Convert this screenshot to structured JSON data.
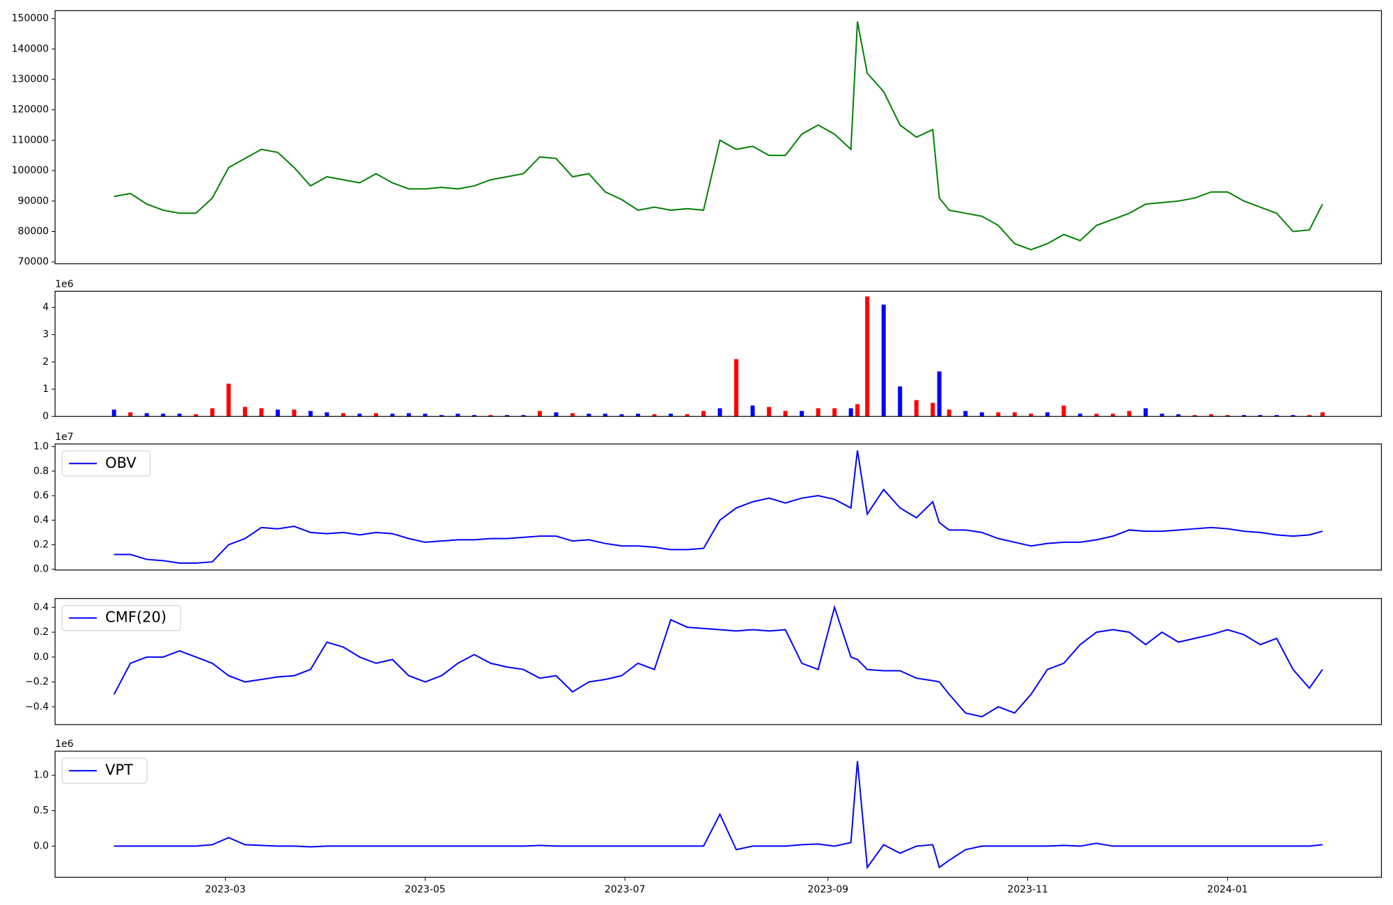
{
  "chart_data": [
    {
      "type": "line",
      "color": "green",
      "x": [
        25,
        30,
        35,
        40,
        45,
        50,
        55,
        60,
        65,
        70,
        75,
        80,
        85,
        90,
        95,
        100,
        105,
        110,
        115,
        120,
        125,
        130,
        135,
        140,
        145,
        150,
        155,
        160,
        165,
        170,
        175,
        180,
        185,
        190,
        195,
        200,
        205,
        210,
        215,
        220,
        225,
        230,
        235,
        240,
        245,
        250,
        252,
        255,
        260,
        265,
        270,
        275,
        277,
        280,
        285,
        290,
        295,
        300,
        305,
        310,
        315,
        320,
        325,
        330,
        335,
        340,
        345,
        350,
        355,
        360,
        365,
        370,
        375,
        380,
        385,
        390,
        394
      ],
      "values": [
        91500,
        92500,
        89000,
        87000,
        86000,
        86000,
        91000,
        101000,
        104000,
        107000,
        106000,
        101000,
        95000,
        98000,
        97000,
        96000,
        99000,
        96000,
        94000,
        94000,
        94500,
        94000,
        95000,
        97000,
        98000,
        99000,
        104500,
        104000,
        98000,
        99000,
        93000,
        90500,
        87000,
        88000,
        87000,
        87500,
        87000,
        110000,
        107000,
        108000,
        105000,
        105000,
        112000,
        115000,
        112000,
        107000,
        149000,
        132000,
        126000,
        115000,
        111000,
        113500,
        91000,
        87000,
        86000,
        85000,
        82000,
        76000,
        74000,
        76000,
        79000,
        77000,
        82000,
        84000,
        86000,
        89000,
        89500,
        90000,
        91000,
        93000,
        93000,
        90000,
        88000,
        86000,
        80000,
        80500,
        89000
      ],
      "xlim": [
        7,
        412
      ],
      "ylim": [
        69400,
        152600
      ],
      "yticks": [
        70000,
        80000,
        90000,
        100000,
        110000,
        120000,
        130000,
        140000,
        150000
      ]
    },
    {
      "type": "bar",
      "y_offset_label": "1e6",
      "x": [
        25,
        30,
        35,
        40,
        45,
        50,
        55,
        60,
        65,
        70,
        75,
        80,
        85,
        90,
        95,
        100,
        105,
        110,
        115,
        120,
        125,
        130,
        135,
        140,
        145,
        150,
        155,
        160,
        165,
        170,
        175,
        180,
        185,
        190,
        195,
        200,
        205,
        210,
        215,
        220,
        225,
        230,
        235,
        240,
        245,
        250,
        252,
        255,
        260,
        265,
        270,
        275,
        277,
        280,
        285,
        290,
        295,
        300,
        305,
        310,
        315,
        320,
        325,
        330,
        335,
        340,
        345,
        350,
        355,
        360,
        365,
        370,
        375,
        380,
        385,
        390,
        394
      ],
      "values": [
        0.25,
        0.15,
        0.12,
        0.1,
        0.1,
        0.08,
        0.3,
        1.2,
        0.35,
        0.3,
        0.25,
        0.25,
        0.2,
        0.15,
        0.12,
        0.1,
        0.12,
        0.1,
        0.12,
        0.1,
        0.05,
        0.1,
        0.05,
        0.05,
        0.05,
        0.05,
        0.2,
        0.15,
        0.12,
        0.1,
        0.1,
        0.08,
        0.1,
        0.08,
        0.1,
        0.08,
        0.2,
        0.3,
        2.1,
        0.4,
        0.35,
        0.2,
        0.2,
        0.3,
        0.3,
        0.3,
        0.45,
        4.4,
        4.1,
        1.1,
        0.6,
        0.5,
        1.65,
        0.25,
        0.2,
        0.15,
        0.15,
        0.15,
        0.1,
        0.15,
        0.4,
        0.1,
        0.1,
        0.1,
        0.2,
        0.3,
        0.1,
        0.08,
        0.05,
        0.08,
        0.05,
        0.05,
        0.05,
        0.05,
        0.05,
        0.05,
        0.15
      ],
      "colors": [
        "blue",
        "red",
        "blue",
        "blue",
        "blue",
        "red",
        "red",
        "red",
        "red",
        "red",
        "blue",
        "red",
        "blue",
        "blue",
        "red",
        "blue",
        "red",
        "blue",
        "blue",
        "blue",
        "blue",
        "blue",
        "blue",
        "red",
        "blue",
        "blue",
        "red",
        "blue",
        "red",
        "blue",
        "blue",
        "blue",
        "blue",
        "red",
        "blue",
        "red",
        "red",
        "blue",
        "red",
        "blue",
        "red",
        "red",
        "blue",
        "red",
        "red",
        "blue",
        "red",
        "red",
        "blue",
        "blue",
        "red",
        "red",
        "blue",
        "red",
        "blue",
        "blue",
        "red",
        "red",
        "red",
        "blue",
        "red",
        "blue",
        "red",
        "red",
        "red",
        "blue",
        "blue",
        "blue",
        "red",
        "red",
        "red",
        "blue",
        "blue",
        "blue",
        "blue",
        "red",
        "red"
      ],
      "xlim": [
        7,
        412
      ],
      "ylim": [
        0,
        4.59
      ],
      "yticks": [
        0,
        1,
        2,
        3,
        4
      ]
    },
    {
      "type": "line",
      "y_offset_label": "1e7",
      "legend": "upper left",
      "x": [
        25,
        30,
        35,
        40,
        45,
        50,
        55,
        60,
        65,
        70,
        75,
        80,
        85,
        90,
        95,
        100,
        105,
        110,
        115,
        120,
        125,
        130,
        135,
        140,
        145,
        150,
        155,
        160,
        165,
        170,
        175,
        180,
        185,
        190,
        195,
        200,
        205,
        210,
        215,
        220,
        225,
        230,
        235,
        240,
        245,
        250,
        252,
        255,
        260,
        265,
        270,
        275,
        277,
        280,
        285,
        290,
        295,
        300,
        305,
        310,
        315,
        320,
        325,
        330,
        335,
        340,
        345,
        350,
        355,
        360,
        365,
        370,
        375,
        380,
        385,
        390,
        394
      ],
      "series": [
        {
          "name": "OBV",
          "color": "blue",
          "values": [
            0.12,
            0.12,
            0.08,
            0.07,
            0.05,
            0.05,
            0.06,
            0.2,
            0.25,
            0.34,
            0.33,
            0.35,
            0.3,
            0.29,
            0.3,
            0.28,
            0.3,
            0.29,
            0.25,
            0.22,
            0.23,
            0.24,
            0.24,
            0.25,
            0.25,
            0.26,
            0.27,
            0.27,
            0.23,
            0.24,
            0.21,
            0.19,
            0.19,
            0.18,
            0.16,
            0.16,
            0.17,
            0.4,
            0.5,
            0.55,
            0.58,
            0.54,
            0.58,
            0.6,
            0.57,
            0.5,
            0.97,
            0.45,
            0.65,
            0.5,
            0.42,
            0.55,
            0.38,
            0.32,
            0.32,
            0.3,
            0.25,
            0.22,
            0.19,
            0.21,
            0.22,
            0.22,
            0.24,
            0.27,
            0.32,
            0.31,
            0.31,
            0.32,
            0.33,
            0.34,
            0.33,
            0.31,
            0.3,
            0.28,
            0.27,
            0.28,
            0.31
          ]
        }
      ],
      "xlim": [
        7,
        412
      ],
      "ylim": [
        -0.007,
        1.022
      ],
      "yticks": [
        {
          "value": 0,
          "label": "0.0"
        },
        0.2,
        0.4,
        0.6,
        0.8,
        {
          "value": 1,
          "label": "1.0"
        }
      ]
    },
    {
      "type": "line",
      "legend": "upper left",
      "x": [
        25,
        30,
        35,
        40,
        45,
        50,
        55,
        60,
        65,
        70,
        75,
        80,
        85,
        90,
        95,
        100,
        105,
        110,
        115,
        120,
        125,
        130,
        135,
        140,
        145,
        150,
        155,
        160,
        165,
        170,
        175,
        180,
        185,
        190,
        195,
        200,
        205,
        210,
        215,
        220,
        225,
        230,
        235,
        240,
        245,
        250,
        252,
        255,
        260,
        265,
        270,
        275,
        277,
        280,
        285,
        290,
        295,
        300,
        305,
        310,
        315,
        320,
        325,
        330,
        335,
        340,
        345,
        350,
        355,
        360,
        365,
        370,
        375,
        380,
        385,
        390,
        394
      ],
      "series": [
        {
          "name": "CMF(20)",
          "color": "blue",
          "values": [
            -0.3,
            -0.05,
            0,
            0,
            0.05,
            0,
            -0.05,
            -0.15,
            -0.2,
            -0.18,
            -0.16,
            -0.15,
            -0.1,
            0.12,
            0.08,
            0,
            -0.05,
            -0.02,
            -0.15,
            -0.2,
            -0.15,
            -0.05,
            0.02,
            -0.05,
            -0.08,
            -0.1,
            -0.17,
            -0.15,
            -0.28,
            -0.2,
            -0.18,
            -0.15,
            -0.05,
            -0.1,
            0.3,
            0.24,
            0.23,
            0.22,
            0.21,
            0.22,
            0.21,
            0.22,
            -0.05,
            -0.1,
            0.4,
            0,
            -0.02,
            -0.1,
            -0.11,
            -0.11,
            -0.17,
            -0.19,
            -0.2,
            -0.3,
            -0.45,
            -0.48,
            -0.4,
            -0.45,
            -0.3,
            -0.1,
            -0.05,
            0.1,
            0.2,
            0.22,
            0.2,
            0.1,
            0.2,
            0.12,
            0.15,
            0.18,
            0.22,
            0.18,
            0.1,
            0.15,
            -0.1,
            -0.25,
            -0.1
          ]
        }
      ],
      "xlim": [
        7,
        412
      ],
      "ylim": [
        -0.543,
        0.471
      ],
      "yticks": [
        {
          "value": -0.4,
          "label": "−0.4"
        },
        {
          "value": -0.2,
          "label": "−0.2"
        },
        {
          "value": 0,
          "label": "0.0"
        },
        0.2,
        0.4
      ]
    },
    {
      "type": "line",
      "y_offset_label": "1e6",
      "legend": "upper left",
      "x": [
        25,
        30,
        35,
        40,
        45,
        50,
        55,
        60,
        65,
        70,
        75,
        80,
        85,
        90,
        95,
        100,
        105,
        110,
        115,
        120,
        125,
        130,
        135,
        140,
        145,
        150,
        155,
        160,
        165,
        170,
        175,
        180,
        185,
        190,
        195,
        200,
        205,
        210,
        215,
        220,
        225,
        230,
        235,
        240,
        245,
        250,
        252,
        255,
        260,
        265,
        270,
        275,
        277,
        280,
        285,
        290,
        295,
        300,
        305,
        310,
        315,
        320,
        325,
        330,
        335,
        340,
        345,
        350,
        355,
        360,
        365,
        370,
        375,
        380,
        385,
        390,
        394
      ],
      "series": [
        {
          "name": "VPT",
          "color": "blue",
          "values": [
            0,
            0,
            0,
            0,
            0,
            0,
            0.02,
            0.12,
            0.02,
            0.01,
            0,
            0,
            -0.01,
            0,
            0,
            0,
            0,
            0,
            0,
            0,
            0,
            0,
            0,
            0,
            0,
            0,
            0.01,
            0,
            0,
            0,
            0,
            0,
            0,
            0,
            0,
            0,
            0,
            0.45,
            -0.05,
            0,
            0,
            0,
            0.02,
            0.03,
            0,
            0.05,
            1.2,
            -0.3,
            0.02,
            -0.1,
            0,
            0.02,
            -0.3,
            -0.2,
            -0.05,
            0,
            0,
            0,
            0,
            0,
            0.01,
            0,
            0.04,
            0,
            0,
            0,
            0,
            0,
            0,
            0,
            0,
            0,
            0,
            0,
            0,
            0,
            0.02
          ]
        }
      ],
      "xlim": [
        7,
        412
      ],
      "ylim": [
        -0.44,
        1.34
      ],
      "yticks": [
        {
          "value": 0,
          "label": "0.0"
        },
        0.5,
        {
          "value": 1,
          "label": "1.0"
        }
      ],
      "xticks": [
        {
          "value": 59,
          "label": "2023-03"
        },
        {
          "value": 120,
          "label": "2023-05"
        },
        {
          "value": 181,
          "label": "2023-07"
        },
        {
          "value": 243,
          "label": "2023-09"
        },
        {
          "value": 304,
          "label": "2023-11"
        },
        {
          "value": 365,
          "label": "2024-01"
        }
      ]
    }
  ]
}
